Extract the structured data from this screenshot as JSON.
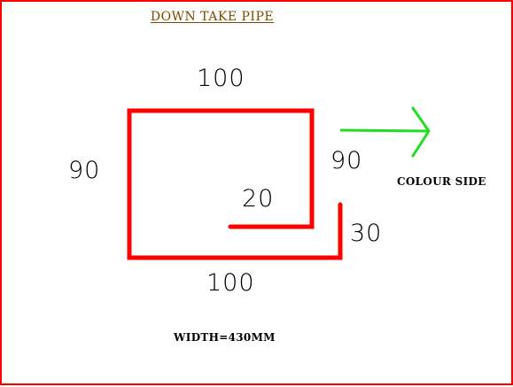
{
  "title": "DOWN TAKE PIPE",
  "dimensions": {
    "top": "100",
    "left": "90",
    "right": "90",
    "inner_lip": "20",
    "outer_lip": "30",
    "bottom": "100"
  },
  "colour_side_label": "COLOUR SIDE",
  "width_label": "WIDTH=430MM",
  "colors": {
    "border": "#ff0000",
    "profile": "#ff0000",
    "arrow": "#22dd22",
    "title": "#7a4a00",
    "text": "#000000"
  }
}
